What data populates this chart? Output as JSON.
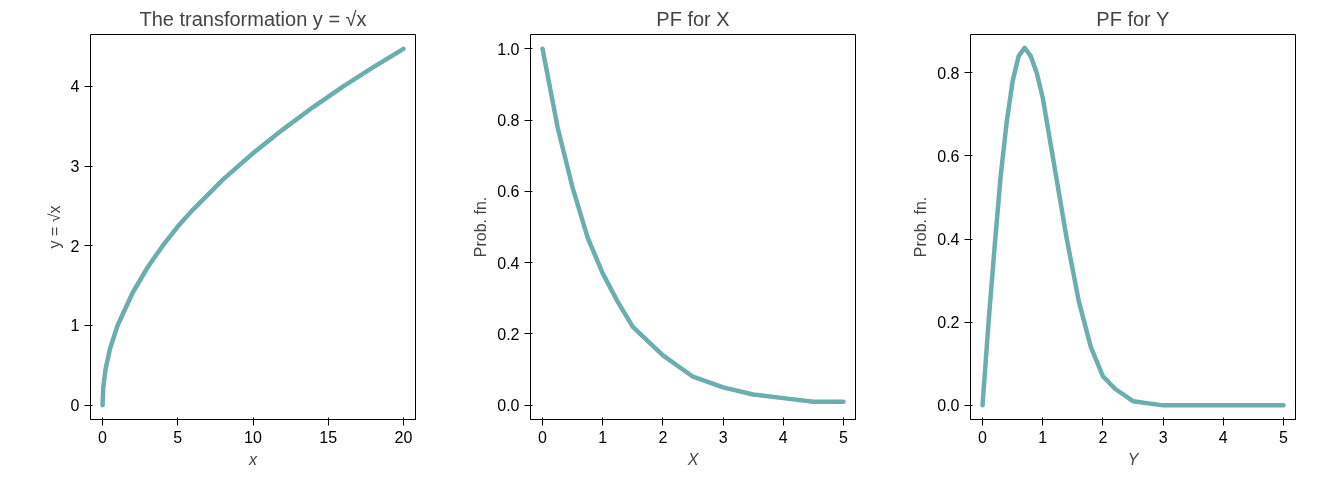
{
  "chart_data": [
    {
      "type": "line",
      "title": "The transformation y = √x",
      "xlabel": "x",
      "ylabel": "y = √x",
      "x": [
        0,
        0.05,
        0.2,
        0.5,
        1,
        2,
        3,
        4,
        5,
        6,
        8,
        10,
        12,
        14,
        16,
        18,
        20
      ],
      "series": [
        {
          "color": "#6aafad",
          "values": [
            0,
            0.22,
            0.45,
            0.71,
            1,
            1.41,
            1.73,
            2,
            2.24,
            2.45,
            2.83,
            3.16,
            3.46,
            3.74,
            4,
            4.24,
            4.47
          ]
        }
      ],
      "xlim": [
        -0.8,
        20.8
      ],
      "ylim": [
        -0.18,
        4.65
      ],
      "xticks": [
        0,
        5,
        10,
        15,
        20
      ],
      "yticks": [
        0,
        1,
        2,
        3,
        4
      ]
    },
    {
      "type": "line",
      "title": "PF for X",
      "xlabel": "X",
      "ylabel": "Prob. fn.",
      "x": [
        0,
        0.25,
        0.5,
        0.75,
        1,
        1.25,
        1.5,
        2,
        2.5,
        3,
        3.5,
        4,
        4.5,
        5
      ],
      "series": [
        {
          "color": "#6aafad",
          "values": [
            1,
            0.78,
            0.61,
            0.47,
            0.37,
            0.29,
            0.22,
            0.14,
            0.08,
            0.05,
            0.03,
            0.02,
            0.01,
            0.01
          ]
        }
      ],
      "xlim": [
        -0.2,
        5.2
      ],
      "ylim": [
        -0.04,
        1.04
      ],
      "xticks": [
        0,
        1,
        2,
        3,
        4,
        5
      ],
      "yticks": [
        {
          "value": 0,
          "label": "0.0"
        },
        {
          "value": 0.2,
          "label": "0.2"
        },
        {
          "value": 0.4,
          "label": "0.4"
        },
        {
          "value": 0.6,
          "label": "0.6"
        },
        {
          "value": 0.8,
          "label": "0.8"
        },
        {
          "value": 1,
          "label": "1.0"
        }
      ]
    },
    {
      "type": "line",
      "title": "PF for Y",
      "xlabel": "Y",
      "ylabel": "Prob. fn.",
      "x": [
        0,
        0.1,
        0.2,
        0.3,
        0.4,
        0.5,
        0.6,
        0.7,
        0.8,
        0.9,
        1,
        1.2,
        1.4,
        1.6,
        1.8,
        2,
        2.2,
        2.5,
        3,
        3.5,
        4,
        5
      ],
      "series": [
        {
          "color": "#6aafad",
          "values": [
            0,
            0.2,
            0.38,
            0.55,
            0.68,
            0.78,
            0.84,
            0.86,
            0.84,
            0.8,
            0.74,
            0.57,
            0.4,
            0.25,
            0.14,
            0.07,
            0.04,
            0.01,
            0,
            0,
            0,
            0
          ]
        }
      ],
      "xlim": [
        -0.2,
        5.2
      ],
      "ylim": [
        -0.034,
        0.892
      ],
      "xticks": [
        0,
        1,
        2,
        3,
        4,
        5
      ],
      "yticks": [
        {
          "value": 0,
          "label": "0.0"
        },
        {
          "value": 0.2,
          "label": "0.2"
        },
        {
          "value": 0.4,
          "label": "0.4"
        },
        {
          "value": 0.6,
          "label": "0.6"
        },
        {
          "value": 0.8,
          "label": "0.8"
        }
      ]
    }
  ]
}
